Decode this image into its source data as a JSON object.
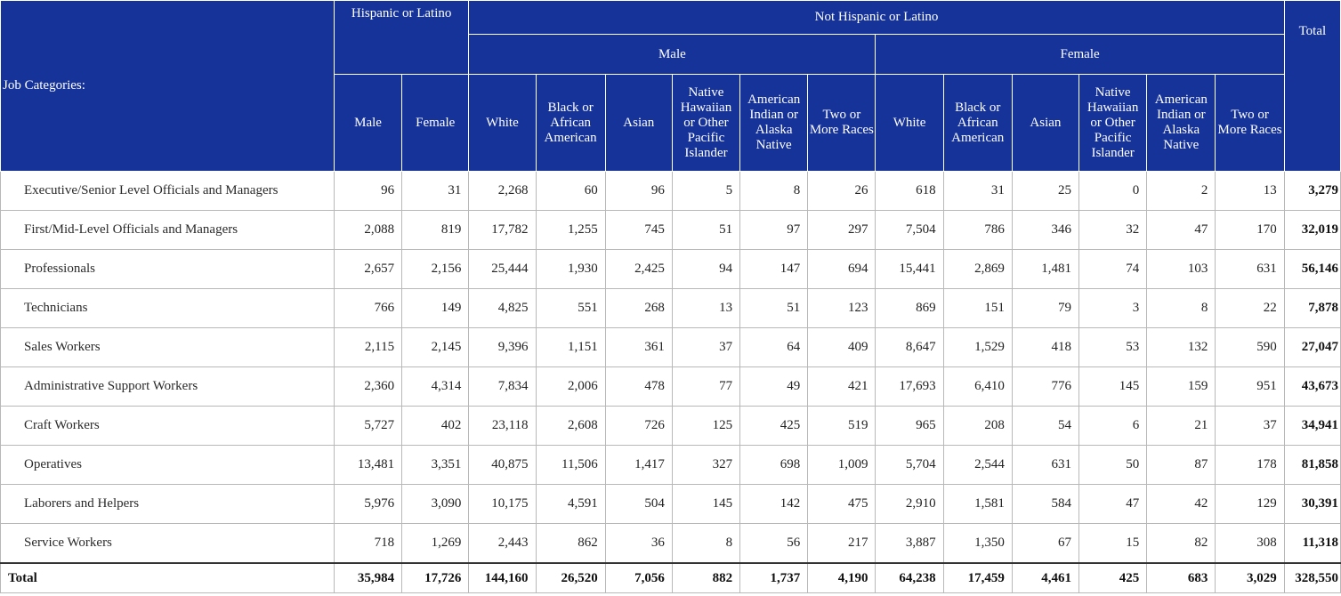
{
  "header": {
    "job_categories": "Job Categories:",
    "hispanic_group": "Hispanic or Latino",
    "not_hispanic_group": "Not Hispanic or Latino",
    "male_group": "Male",
    "female_group": "Female",
    "total": "Total",
    "hispanic_cols": [
      "Male",
      "Female"
    ],
    "race_cols": [
      "White",
      "Black or African American",
      "Asian",
      "Native Hawaiian or Other Pacific Islander",
      "American Indian or Alaska Native",
      "Two or More Races"
    ]
  },
  "rows": [
    {
      "label": "Executive/Senior Level Officials and Managers",
      "values": [
        "96",
        "31",
        "2,268",
        "60",
        "96",
        "5",
        "8",
        "26",
        "618",
        "31",
        "25",
        "0",
        "2",
        "13"
      ],
      "total": "3,279"
    },
    {
      "label": "First/Mid-Level Officials and Managers",
      "values": [
        "2,088",
        "819",
        "17,782",
        "1,255",
        "745",
        "51",
        "97",
        "297",
        "7,504",
        "786",
        "346",
        "32",
        "47",
        "170"
      ],
      "total": "32,019"
    },
    {
      "label": "Professionals",
      "values": [
        "2,657",
        "2,156",
        "25,444",
        "1,930",
        "2,425",
        "94",
        "147",
        "694",
        "15,441",
        "2,869",
        "1,481",
        "74",
        "103",
        "631"
      ],
      "total": "56,146"
    },
    {
      "label": "Technicians",
      "values": [
        "766",
        "149",
        "4,825",
        "551",
        "268",
        "13",
        "51",
        "123",
        "869",
        "151",
        "79",
        "3",
        "8",
        "22"
      ],
      "total": "7,878"
    },
    {
      "label": "Sales Workers",
      "values": [
        "2,115",
        "2,145",
        "9,396",
        "1,151",
        "361",
        "37",
        "64",
        "409",
        "8,647",
        "1,529",
        "418",
        "53",
        "132",
        "590"
      ],
      "total": "27,047"
    },
    {
      "label": "Administrative Support Workers",
      "values": [
        "2,360",
        "4,314",
        "7,834",
        "2,006",
        "478",
        "77",
        "49",
        "421",
        "17,693",
        "6,410",
        "776",
        "145",
        "159",
        "951"
      ],
      "total": "43,673"
    },
    {
      "label": "Craft Workers",
      "values": [
        "5,727",
        "402",
        "23,118",
        "2,608",
        "726",
        "125",
        "425",
        "519",
        "965",
        "208",
        "54",
        "6",
        "21",
        "37"
      ],
      "total": "34,941"
    },
    {
      "label": "Operatives",
      "values": [
        "13,481",
        "3,351",
        "40,875",
        "11,506",
        "1,417",
        "327",
        "698",
        "1,009",
        "5,704",
        "2,544",
        "631",
        "50",
        "87",
        "178"
      ],
      "total": "81,858"
    },
    {
      "label": "Laborers and Helpers",
      "values": [
        "5,976",
        "3,090",
        "10,175",
        "4,591",
        "504",
        "145",
        "142",
        "475",
        "2,910",
        "1,581",
        "584",
        "47",
        "42",
        "129"
      ],
      "total": "30,391"
    },
    {
      "label": "Service Workers",
      "values": [
        "718",
        "1,269",
        "2,443",
        "862",
        "36",
        "8",
        "56",
        "217",
        "3,887",
        "1,350",
        "67",
        "15",
        "82",
        "308"
      ],
      "total": "11,318"
    }
  ],
  "total_row": {
    "label": "Total",
    "values": [
      "35,984",
      "17,726",
      "144,160",
      "26,520",
      "7,056",
      "882",
      "1,737",
      "4,190",
      "64,238",
      "17,459",
      "4,461",
      "425",
      "683",
      "3,029"
    ],
    "total": "328,550"
  },
  "colors": {
    "header_bg": "#16339a",
    "header_text": "#ffffff",
    "grid": "#b8b8b8"
  }
}
